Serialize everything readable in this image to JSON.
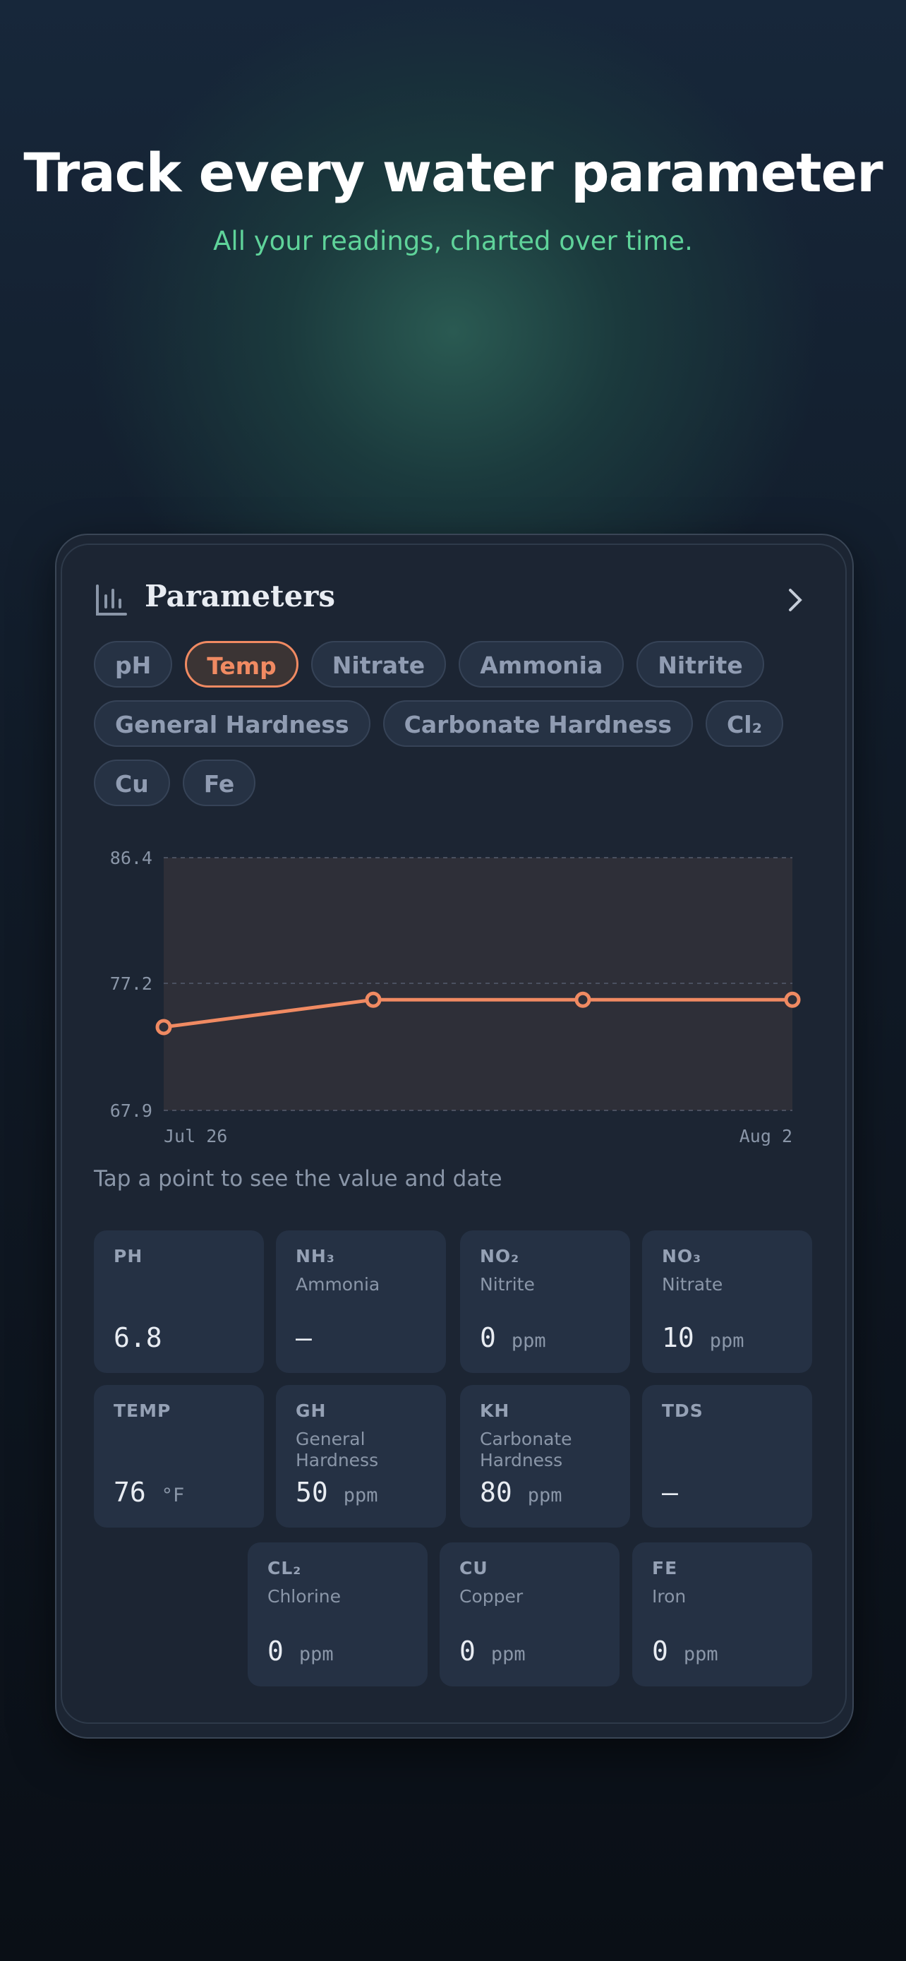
{
  "header": {
    "title": "Track every water parameter",
    "subtitle": "All your readings, charted over time."
  },
  "card": {
    "title": "Parameters",
    "chips": [
      "pH",
      "Temp",
      "Nitrate",
      "Ammonia",
      "Nitrite",
      "General Hardness",
      "Carbonate Hardness",
      "Cl₂",
      "Cu",
      "Fe"
    ],
    "selected_chip": 1,
    "hint": "Tap a point to see the value and date",
    "tiles": [
      {
        "label": "PH",
        "value": 6.8
      },
      {
        "label": "NH₃",
        "sublabel": "Ammonia",
        "value": "—"
      },
      {
        "label": "NO₂",
        "sublabel": "Nitrite",
        "value": 0,
        "unit": "ppm"
      },
      {
        "label": "NO₃",
        "sublabel": "Nitrate",
        "value": 10,
        "unit": "ppm"
      },
      {
        "label": "TEMP",
        "value": 76,
        "unit": "°F"
      },
      {
        "label": "GH",
        "sublabel": "General Hardness",
        "value": 50,
        "unit": "ppm"
      },
      {
        "label": "KH",
        "sublabel": "Carbonate Hardness",
        "value": 80,
        "unit": "ppm"
      },
      {
        "label": "TDS",
        "value": "—"
      },
      {
        "label": "CL₂",
        "sublabel": "Chlorine",
        "value": 0,
        "unit": "ppm"
      },
      {
        "label": "CU",
        "sublabel": "Copper",
        "value": 0,
        "unit": "ppm"
      },
      {
        "label": "FE",
        "sublabel": "Iron",
        "value": 0,
        "unit": "ppm"
      }
    ]
  },
  "chart_data": {
    "type": "line",
    "categories": [
      "Jul 26",
      null,
      null,
      "Aug 2"
    ],
    "series": [
      {
        "name": "Temp",
        "color": "#f08a62",
        "values": [
          74,
          76,
          76,
          76
        ]
      }
    ],
    "ylim": [
      67.9,
      86.4
    ],
    "yticks": [
      67.9,
      77.2,
      86.4
    ],
    "grid": true
  }
}
